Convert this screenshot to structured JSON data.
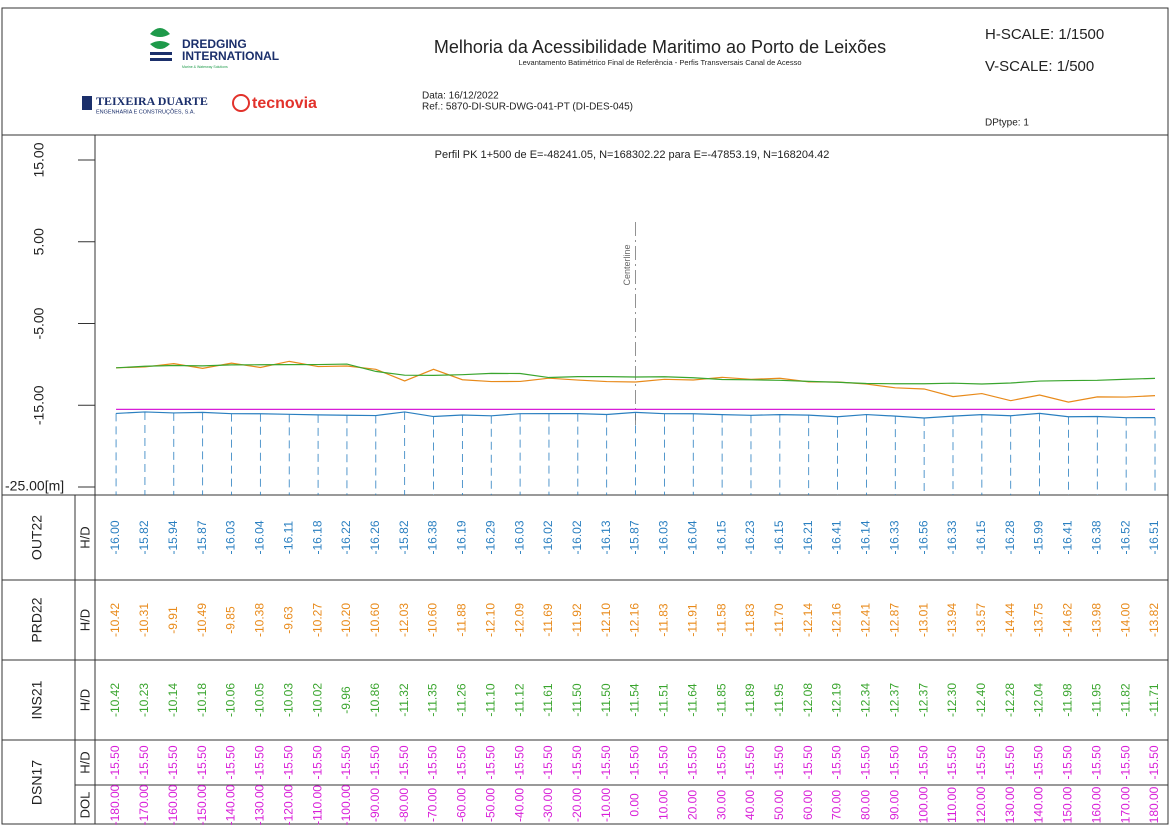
{
  "header": {
    "logo_1_line_1": "DREDGING",
    "logo_1_line_2": "INTERNATIONAL",
    "logo_1_tagline": "Marine & Waterway Solutions",
    "logo_2": "TEIXEIRA DUARTE",
    "logo_2_tagline": "ENGENHARIA E CONSTRUÇÕES, S.A.",
    "logo_3": "tecnovia",
    "title": "Melhoria da Acessibilidade Maritimo ao Porto de Leixões",
    "subtitle": "Levantamento Batimétrico Final de Referência - Perfis Transversais Canal de Acesso",
    "date": "Data: 16/12/2022",
    "ref": "Ref.: 5870-DI-SUR-DWG-041-PT (DI-DES-045)",
    "h_scale": "H-SCALE: 1/1500",
    "v_scale": "V-SCALE: 1/500",
    "dptype": "DPtype: 1"
  },
  "chart_data": {
    "type": "line",
    "title": "Perfil PK 1+500 de E=-48241.05, N=168302.22 para E=-47853.19, N=168204.42",
    "annotation": "Centerline",
    "xlabel": "DOL",
    "x": [
      -180,
      -170,
      -160,
      -150,
      -140,
      -130,
      -120,
      -110,
      -100,
      -90,
      -80,
      -70,
      -60,
      -50,
      -40,
      -30,
      -20,
      -10,
      0,
      10,
      20,
      30,
      40,
      50,
      60,
      70,
      80,
      90,
      100,
      110,
      120,
      130,
      140,
      150,
      160,
      170,
      180
    ],
    "x_labels": [
      "-180.00",
      "-170.00",
      "-160.00",
      "-150.00",
      "-140.00",
      "-130.00",
      "-120.00",
      "-110.00",
      "-100.00",
      "-90.00",
      "-80.00",
      "-70.00",
      "-60.00",
      "-50.00",
      "-40.00",
      "-30.00",
      "-20.00",
      "-10.00",
      "0.00",
      "10.00",
      "20.00",
      "30.00",
      "40.00",
      "50.00",
      "60.00",
      "70.00",
      "80.00",
      "90.00",
      "100.00",
      "110.00",
      "120.00",
      "130.00",
      "140.00",
      "150.00",
      "160.00",
      "170.00",
      "180.00"
    ],
    "xlim": [
      -187.3,
      184.5
    ],
    "ylim": [
      -25,
      15
    ],
    "yticks": [
      {
        "value": 15,
        "label": "15.00"
      },
      {
        "value": 5,
        "label": "5.00"
      },
      {
        "value": -5,
        "label": "-5.00"
      },
      {
        "value": -15,
        "label": "-15.00"
      },
      {
        "value": -25,
        "label": "-25.00[m]"
      }
    ],
    "series": [
      {
        "name": "OUT22",
        "row_label": "H/D",
        "color": "#2a7fc0",
        "values": [
          -16.0,
          -15.82,
          -15.94,
          -15.87,
          -16.03,
          -16.04,
          -16.11,
          -16.18,
          -16.22,
          -16.26,
          -15.82,
          -16.38,
          -16.19,
          -16.29,
          -16.03,
          -16.02,
          -16.02,
          -16.13,
          -15.87,
          -16.03,
          -16.04,
          -16.15,
          -16.23,
          -16.15,
          -16.21,
          -16.41,
          -16.14,
          -16.33,
          -16.56,
          -16.33,
          -16.15,
          -16.28,
          -15.99,
          -16.41,
          -16.38,
          -16.52,
          -16.51
        ],
        "value_labels": [
          "-16.00",
          "-15.82",
          "-15.94",
          "-15.87",
          "-16.03",
          "-16.04",
          "-16.11",
          "-16.18",
          "-16.22",
          "-16.26",
          "-15.82",
          "-16.38",
          "-16.19",
          "-16.29",
          "-16.03",
          "-16.02",
          "-16.02",
          "-16.13",
          "-15.87",
          "-16.03",
          "-16.04",
          "-16.15",
          "-16.23",
          "-16.15",
          "-16.21",
          "-16.41",
          "-16.14",
          "-16.33",
          "-16.56",
          "-16.33",
          "-16.15",
          "-16.28",
          "-15.99",
          "-16.41",
          "-16.38",
          "-16.52",
          "-16.51"
        ]
      },
      {
        "name": "PRD22",
        "row_label": "H/D",
        "color": "#e88a1a",
        "values": [
          -10.42,
          -10.31,
          -9.91,
          -10.49,
          -9.85,
          -10.38,
          -9.63,
          -10.27,
          -10.2,
          -10.6,
          -12.03,
          -10.6,
          -11.88,
          -12.1,
          -12.09,
          -11.69,
          -11.92,
          -12.1,
          -12.16,
          -11.83,
          -11.91,
          -11.58,
          -11.83,
          -11.7,
          -12.14,
          -12.16,
          -12.41,
          -12.87,
          -13.01,
          -13.94,
          -13.57,
          -14.44,
          -13.75,
          -14.62,
          -13.98,
          -14.0,
          -13.82
        ],
        "value_labels": [
          "-10.42",
          "-10.31",
          "-9.91",
          "-10.49",
          "-9.85",
          "-10.38",
          "-9.63",
          "-10.27",
          "-10.20",
          "-10.60",
          "-12.03",
          "-10.60",
          "-11.88",
          "-12.10",
          "-12.09",
          "-11.69",
          "-11.92",
          "-12.10",
          "-12.16",
          "-11.83",
          "-11.91",
          "-11.58",
          "-11.83",
          "-11.70",
          "-12.14",
          "-12.16",
          "-12.41",
          "-12.87",
          "-13.01",
          "-13.94",
          "-13.57",
          "-14.44",
          "-13.75",
          "-14.62",
          "-13.98",
          "-14.00",
          "-13.82"
        ]
      },
      {
        "name": "INS21",
        "row_label": "H/D",
        "color": "#3aa52e",
        "values": [
          -10.42,
          -10.23,
          -10.14,
          -10.18,
          -10.06,
          -10.05,
          -10.03,
          -10.02,
          -9.96,
          -10.86,
          -11.32,
          -11.35,
          -11.26,
          -11.1,
          -11.12,
          -11.61,
          -11.5,
          -11.5,
          -11.54,
          -11.51,
          -11.64,
          -11.85,
          -11.89,
          -11.95,
          -12.08,
          -12.19,
          -12.34,
          -12.37,
          -12.37,
          -12.3,
          -12.4,
          -12.28,
          -12.04,
          -11.98,
          -11.95,
          -11.82,
          -11.71
        ],
        "value_labels": [
          "-10.42",
          "-10.23",
          "-10.14",
          "-10.18",
          "-10.06",
          "-10.05",
          "-10.03",
          "-10.02",
          "-9.96",
          "-10.86",
          "-11.32",
          "-11.35",
          "-11.26",
          "-11.10",
          "-11.12",
          "-11.61",
          "-11.50",
          "-11.50",
          "-11.54",
          "-11.51",
          "-11.64",
          "-11.85",
          "-11.89",
          "-11.95",
          "-12.08",
          "-12.19",
          "-12.34",
          "-12.37",
          "-12.37",
          "-12.30",
          "-12.40",
          "-12.28",
          "-12.04",
          "-11.98",
          "-11.95",
          "-11.82",
          "-11.71"
        ]
      },
      {
        "name": "DSN17",
        "row_label": "H/D",
        "color": "#d81ed8",
        "values": [
          -15.5,
          -15.5,
          -15.5,
          -15.5,
          -15.5,
          -15.5,
          -15.5,
          -15.5,
          -15.5,
          -15.5,
          -15.5,
          -15.5,
          -15.5,
          -15.5,
          -15.5,
          -15.5,
          -15.5,
          -15.5,
          -15.5,
          -15.5,
          -15.5,
          -15.5,
          -15.5,
          -15.5,
          -15.5,
          -15.5,
          -15.5,
          -15.5,
          -15.5,
          -15.5,
          -15.5,
          -15.5,
          -15.5,
          -15.5,
          -15.5,
          -15.5,
          -15.5
        ],
        "value_labels": [
          "-15.50",
          "-15.50",
          "-15.50",
          "-15.50",
          "-15.50",
          "-15.50",
          "-15.50",
          "-15.50",
          "-15.50",
          "-15.50",
          "-15.50",
          "-15.50",
          "-15.50",
          "-15.50",
          "-15.50",
          "-15.50",
          "-15.50",
          "-15.50",
          "-15.50",
          "-15.50",
          "-15.50",
          "-15.50",
          "-15.50",
          "-15.50",
          "-15.50",
          "-15.50",
          "-15.50",
          "-15.50",
          "-15.50",
          "-15.50",
          "-15.50",
          "-15.50",
          "-15.50",
          "-15.50",
          "-15.50",
          "-15.50",
          "-15.50"
        ]
      }
    ]
  }
}
